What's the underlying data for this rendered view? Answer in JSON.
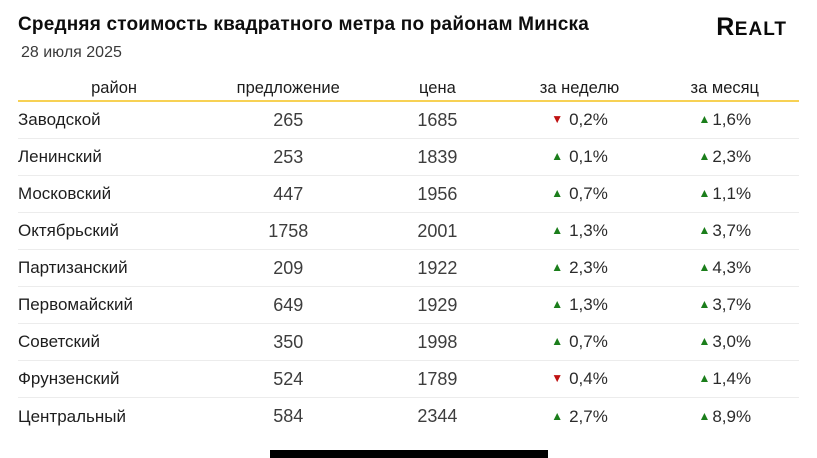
{
  "header": {
    "title": "Средняя стоимость квадратного метра по районам Минска",
    "date": "28 июля 2025",
    "logo": "Realt"
  },
  "table": {
    "columns": [
      "район",
      "предложение",
      "цена",
      "за неделю",
      "за месяц"
    ],
    "rows": [
      {
        "district": "Заводской",
        "offers": "265",
        "price": "1685",
        "week": {
          "dir": "down",
          "value": "0,2%"
        },
        "month": {
          "dir": "up",
          "value": "1,6%"
        }
      },
      {
        "district": "Ленинский",
        "offers": "253",
        "price": "1839",
        "week": {
          "dir": "up",
          "value": "0,1%"
        },
        "month": {
          "dir": "up",
          "value": "2,3%"
        }
      },
      {
        "district": "Московский",
        "offers": "447",
        "price": "1956",
        "week": {
          "dir": "up",
          "value": "0,7%"
        },
        "month": {
          "dir": "up",
          "value": "1,1%"
        }
      },
      {
        "district": "Октябрьский",
        "offers": "1758",
        "price": "2001",
        "week": {
          "dir": "up",
          "value": "1,3%"
        },
        "month": {
          "dir": "up",
          "value": "3,7%"
        }
      },
      {
        "district": "Партизанский",
        "offers": "209",
        "price": "1922",
        "week": {
          "dir": "up",
          "value": "2,3%"
        },
        "month": {
          "dir": "up",
          "value": "4,3%"
        }
      },
      {
        "district": "Первомайский",
        "offers": "649",
        "price": "1929",
        "week": {
          "dir": "up",
          "value": "1,3%"
        },
        "month": {
          "dir": "up",
          "value": "3,7%"
        }
      },
      {
        "district": "Советский",
        "offers": "350",
        "price": "1998",
        "week": {
          "dir": "up",
          "value": "0,7%"
        },
        "month": {
          "dir": "up",
          "value": "3,0%"
        }
      },
      {
        "district": "Фрунзенский",
        "offers": "524",
        "price": "1789",
        "week": {
          "dir": "down",
          "value": "0,4%"
        },
        "month": {
          "dir": "up",
          "value": "1,4%"
        }
      },
      {
        "district": "Центральный",
        "offers": "584",
        "price": "2344",
        "week": {
          "dir": "up",
          "value": "2,7%"
        },
        "month": {
          "dir": "up",
          "value": "8,9%"
        }
      }
    ]
  },
  "icons": {
    "up": "▲",
    "down": "▼"
  },
  "colors": {
    "up": "#1b7e1b",
    "down": "#bf1111",
    "accent_line": "#f7d154"
  },
  "chart_data": {
    "type": "table",
    "title": "Средняя стоимость квадратного метра по районам Минска",
    "subtitle": "28 июля 2025",
    "columns": [
      "район",
      "предложение",
      "цена",
      "за неделю",
      "за месяц"
    ],
    "rows": [
      [
        "Заводской",
        265,
        1685,
        "-0,2%",
        "+1,6%"
      ],
      [
        "Ленинский",
        253,
        1839,
        "+0,1%",
        "+2,3%"
      ],
      [
        "Московский",
        447,
        1956,
        "+0,7%",
        "+1,1%"
      ],
      [
        "Октябрьский",
        1758,
        2001,
        "+1,3%",
        "+3,7%"
      ],
      [
        "Партизанский",
        209,
        1922,
        "+2,3%",
        "+4,3%"
      ],
      [
        "Первомайский",
        649,
        1929,
        "+1,3%",
        "+3,7%"
      ],
      [
        "Советский",
        350,
        1998,
        "+0,7%",
        "+3,0%"
      ],
      [
        "Фрунзенский",
        524,
        1789,
        "-0,4%",
        "+1,4%"
      ],
      [
        "Центральный",
        584,
        2344,
        "+2,7%",
        "+8,9%"
      ]
    ]
  }
}
